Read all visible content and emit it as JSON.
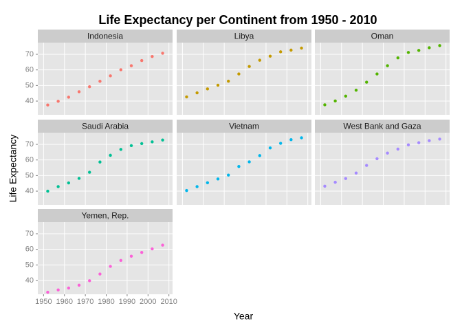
{
  "chart_data": {
    "type": "scatter",
    "title": "Life Expectancy per Continent from 1950 - 2010",
    "x_label": "Year",
    "y_label": "Life Expectancy",
    "x": [
      1952,
      1957,
      1962,
      1967,
      1972,
      1977,
      1982,
      1987,
      1992,
      1997,
      2002,
      2007
    ],
    "xlim": [
      1947.25,
      2011.75
    ],
    "xticks": [
      1950,
      1960,
      1970,
      1980,
      1990,
      2000,
      2010
    ],
    "ylim": [
      31.2,
      77.5
    ],
    "yticks": [
      40,
      50,
      60,
      70
    ],
    "grid": true,
    "series": [
      {
        "name": "Indonesia",
        "color": "#F8766D",
        "values": [
          37.5,
          39.9,
          42.5,
          46.0,
          49.2,
          52.7,
          56.2,
          60.1,
          62.7,
          66.0,
          68.6,
          70.7
        ]
      },
      {
        "name": "Libya",
        "color": "#C49A00",
        "values": [
          42.7,
          45.3,
          47.8,
          50.2,
          52.8,
          57.4,
          62.2,
          66.2,
          68.8,
          71.6,
          72.7,
          74.0
        ]
      },
      {
        "name": "Oman",
        "color": "#53B400",
        "values": [
          37.6,
          40.1,
          43.2,
          47.0,
          52.1,
          57.4,
          62.7,
          67.7,
          71.2,
          72.5,
          74.2,
          75.6
        ]
      },
      {
        "name": "Saudi Arabia",
        "color": "#00C094",
        "values": [
          40.0,
          42.9,
          45.3,
          48.2,
          52.1,
          58.7,
          63.0,
          66.8,
          69.2,
          70.5,
          71.6,
          72.8
        ]
      },
      {
        "name": "Vietnam",
        "color": "#00B6EB",
        "values": [
          40.4,
          42.9,
          45.4,
          47.8,
          50.3,
          55.8,
          58.8,
          62.8,
          67.7,
          70.7,
          73.0,
          74.2
        ]
      },
      {
        "name": "West Bank and Gaza",
        "color": "#A58AFF",
        "values": [
          43.2,
          45.7,
          48.1,
          51.6,
          56.5,
          60.8,
          64.4,
          67.0,
          69.7,
          71.1,
          72.4,
          73.4
        ]
      },
      {
        "name": "Yemen, Rep.",
        "color": "#FB61D7",
        "values": [
          32.5,
          34.0,
          35.2,
          37.0,
          39.9,
          44.2,
          49.1,
          52.9,
          55.6,
          58.0,
          60.3,
          62.7
        ]
      }
    ]
  }
}
